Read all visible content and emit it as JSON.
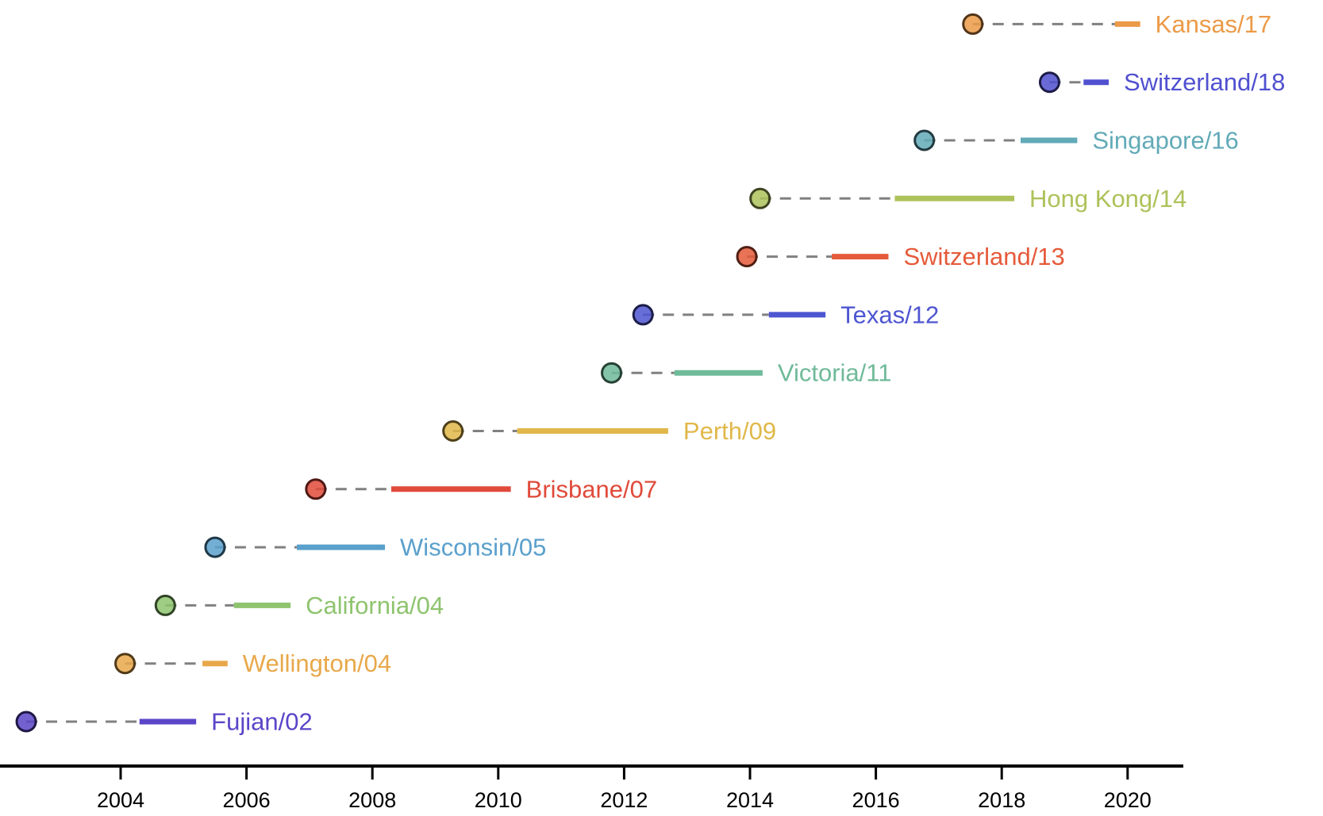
{
  "chart_data": {
    "type": "timeline",
    "title": "",
    "xlabel": "",
    "ylabel": "",
    "xlim": [
      2002.2,
      2020.9
    ],
    "x_ticks": [
      "2004",
      "2006",
      "2008",
      "2010",
      "2012",
      "2014",
      "2016",
      "2018",
      "2020"
    ],
    "grid": false,
    "series": [
      {
        "name": "Fujian/02",
        "point": 2002.5,
        "bar_start": 2004.3,
        "bar_end": 2005.2,
        "color": "#5b45c8"
      },
      {
        "name": "Wellington/04",
        "point": 2004.07,
        "bar_start": 2005.3,
        "bar_end": 2005.7,
        "color": "#e8a84a"
      },
      {
        "name": "California/04",
        "point": 2004.71,
        "bar_start": 2005.8,
        "bar_end": 2006.7,
        "color": "#8ec46e"
      },
      {
        "name": "Wisconsin/05",
        "point": 2005.5,
        "bar_start": 2006.8,
        "bar_end": 2008.2,
        "color": "#5aa0cc"
      },
      {
        "name": "Brisbane/07",
        "point": 2007.1,
        "bar_start": 2008.3,
        "bar_end": 2010.2,
        "color": "#e04a3a"
      },
      {
        "name": "Perth/09",
        "point": 2009.28,
        "bar_start": 2010.3,
        "bar_end": 2012.7,
        "color": "#e0b84a"
      },
      {
        "name": "Victoria/11",
        "point": 2011.8,
        "bar_start": 2012.8,
        "bar_end": 2014.2,
        "color": "#6fba99"
      },
      {
        "name": "Texas/12",
        "point": 2012.3,
        "bar_start": 2014.3,
        "bar_end": 2015.2,
        "color": "#4e55d0"
      },
      {
        "name": "Switzerland/13",
        "point": 2013.95,
        "bar_start": 2015.3,
        "bar_end": 2016.2,
        "color": "#e55a3a"
      },
      {
        "name": "Hong Kong/14",
        "point": 2014.16,
        "bar_start": 2016.3,
        "bar_end": 2018.2,
        "color": "#adc25a"
      },
      {
        "name": "Singapore/16",
        "point": 2016.77,
        "bar_start": 2018.3,
        "bar_end": 2019.2,
        "color": "#62aab8"
      },
      {
        "name": "Switzerland/18",
        "point": 2018.76,
        "bar_start": 2019.3,
        "bar_end": 2019.7,
        "color": "#5050d0"
      },
      {
        "name": "Kansas/17",
        "point": 2017.54,
        "bar_start": 2019.8,
        "bar_end": 2020.2,
        "color": "#eb9a48"
      }
    ]
  }
}
